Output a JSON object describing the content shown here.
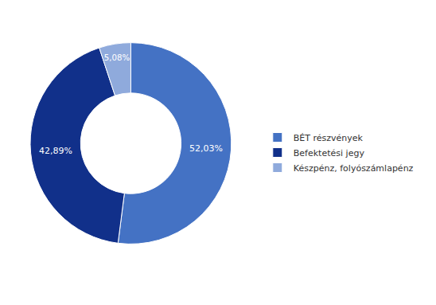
{
  "chart_data": {
    "type": "pie",
    "categories": [
      "BÉT részvények",
      "Befektetési jegy",
      "Készpénz, folyószámlapénz"
    ],
    "values": [
      52.03,
      42.89,
      5.08
    ],
    "value_labels": [
      "52,03%",
      "42,89%",
      "5,08%"
    ],
    "colors": [
      "#4472c4",
      "#11308a",
      "#8faadc"
    ],
    "data_labels": true,
    "legend": "right"
  }
}
